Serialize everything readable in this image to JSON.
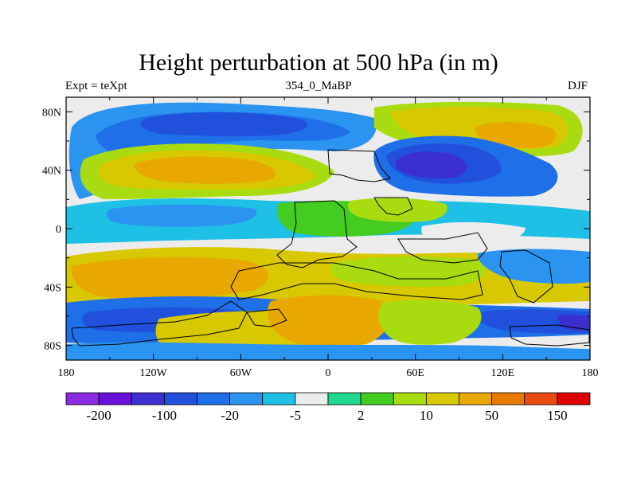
{
  "title": "Height perturbation at 500 hPa (in m)",
  "left_string": "Expt = teXpt",
  "center_string": "354_0_MaBP",
  "right_string": "DJF",
  "x_axis": {
    "ticks": [
      {
        "lon": -180,
        "label": "180"
      },
      {
        "lon": -120,
        "label": "120W"
      },
      {
        "lon": -60,
        "label": "60W"
      },
      {
        "lon": 0,
        "label": "0"
      },
      {
        "lon": 60,
        "label": "60E"
      },
      {
        "lon": 120,
        "label": "120E"
      },
      {
        "lon": 180,
        "label": "180"
      }
    ]
  },
  "y_axis": {
    "ticks": [
      {
        "lat": 80,
        "label": "80N"
      },
      {
        "lat": 40,
        "label": "40N"
      },
      {
        "lat": 0,
        "label": "0"
      },
      {
        "lat": -40,
        "label": "40S"
      },
      {
        "lat": -80,
        "label": "80S"
      }
    ]
  },
  "colorbar": {
    "colors": [
      "#8a2be2",
      "#6a0fd8",
      "#3c2fd0",
      "#2050dc",
      "#1f6fe8",
      "#2a94f0",
      "#1ec0e6",
      "#ececec",
      "#20d890",
      "#44cc20",
      "#a8dc10",
      "#d8c800",
      "#e8a800",
      "#e87a00",
      "#e84a10",
      "#e00000"
    ],
    "labels": [
      {
        "boundary": 1,
        "text": "-200"
      },
      {
        "boundary": 3,
        "text": "-100"
      },
      {
        "boundary": 5,
        "text": "-20"
      },
      {
        "boundary": 7,
        "text": "-5"
      },
      {
        "boundary": 9,
        "text": "2"
      },
      {
        "boundary": 11,
        "text": "10"
      },
      {
        "boundary": 13,
        "text": "50"
      },
      {
        "boundary": 15,
        "text": "150"
      }
    ]
  }
}
